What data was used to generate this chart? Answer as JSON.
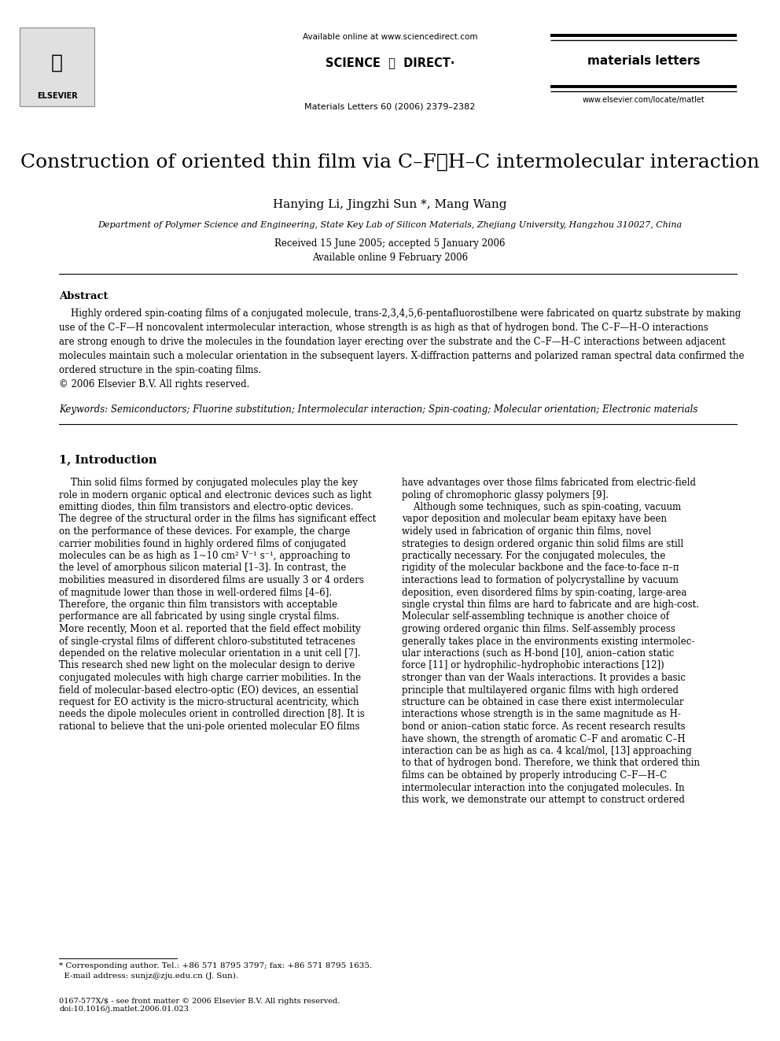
{
  "bg_color": "#ffffff",
  "page_width": 9.92,
  "page_height": 13.23,
  "header_available": "Available online at www.sciencedirect.com",
  "header_sd": "SCIENCE  ⓐ  DIRECT·",
  "header_journal": "materials letters",
  "header_info": "Materials Letters 60 (2006) 2379–2382",
  "header_website": "www.elsevier.com/locate/matlet",
  "title": "Construction of oriented thin film via C–F⋯H–C intermolecular interaction",
  "authors": "Hanying Li, Jingzhi Sun *, Mang Wang",
  "affiliation": "Department of Polymer Science and Engineering, State Key Lab of Silicon Materials, Zhejiang University, Hangzhou 310027, China",
  "date1": "Received 15 June 2005; accepted 5 January 2006",
  "date2": "Available online 9 February 2006",
  "abstract_label": "Abstract",
  "abstract_body": "    Highly ordered spin-coating films of a conjugated molecule, trans-2,3,4,5,6-pentafluorostilbene were fabricated on quartz substrate by making\nuse of the C–F—H noncovalent intermolecular interaction, whose strength is as high as that of hydrogen bond. The C–F—H–O interactions\nare strong enough to drive the molecules in the foundation layer erecting over the substrate and the C–F—H–C interactions between adjacent\nmolecules maintain such a molecular orientation in the subsequent layers. X-diffraction patterns and polarized raman spectral data confirmed the\nordered structure in the spin-coating films.\n© 2006 Elsevier B.V. All rights reserved.",
  "keywords": "Keywords: Semiconductors; Fluorine substitution; Intermolecular interaction; Spin-coating; Molecular orientation; Electronic materials",
  "sec1_title": "1, Introduction",
  "col1_lines": [
    "    Thin solid films formed by conjugated molecules play the key",
    "role in modern organic optical and electronic devices such as light",
    "emitting diodes, thin film transistors and electro-optic devices.",
    "The degree of the structural order in the films has significant effect",
    "on the performance of these devices. For example, the charge",
    "carrier mobilities found in highly ordered films of conjugated",
    "molecules can be as high as 1~10 cm² V⁻¹ s⁻¹, approaching to",
    "the level of amorphous silicon material [1–3]. In contrast, the",
    "mobilities measured in disordered films are usually 3 or 4 orders",
    "of magnitude lower than those in well-ordered films [4–6].",
    "Therefore, the organic thin film transistors with acceptable",
    "performance are all fabricated by using single crystal films.",
    "More recently, Moon et al. reported that the field effect mobility",
    "of single-crystal films of different chloro-substituted tetracenes",
    "depended on the relative molecular orientation in a unit cell [7].",
    "This research shed new light on the molecular design to derive",
    "conjugated molecules with high charge carrier mobilities. In the",
    "field of molecular-based electro-optic (EO) devices, an essential",
    "request for EO activity is the micro-structural acentricity, which",
    "needs the dipole molecules orient in controlled direction [8]. It is",
    "rational to believe that the uni-pole oriented molecular EO films"
  ],
  "col2_lines": [
    "have advantages over those films fabricated from electric-field",
    "poling of chromophoric glassy polymers [9].",
    "    Although some techniques, such as spin-coating, vacuum",
    "vapor deposition and molecular beam epitaxy have been",
    "widely used in fabrication of organic thin films, novel",
    "strategies to design ordered organic thin solid films are still",
    "practically necessary. For the conjugated molecules, the",
    "rigidity of the molecular backbone and the face-to-face π–π",
    "interactions lead to formation of polycrystalline by vacuum",
    "deposition, even disordered films by spin-coating, large-area",
    "single crystal thin films are hard to fabricate and are high-cost.",
    "Molecular self-assembling technique is another choice of",
    "growing ordered organic thin films. Self-assembly process",
    "generally takes place in the environments existing intermolec-",
    "ular interactions (such as H-bond [10], anion–cation static",
    "force [11] or hydrophilic–hydrophobic interactions [12])",
    "stronger than van der Waals interactions. It provides a basic",
    "principle that multilayered organic films with high ordered",
    "structure can be obtained in case there exist intermolecular",
    "interactions whose strength is in the same magnitude as H-",
    "bond or anion–cation static force. As recent research results",
    "have shown, the strength of aromatic C–F and aromatic C–H",
    "interaction can be as high as ca. 4 kcal/mol, [13] approaching",
    "to that of hydrogen bond. Therefore, we think that ordered thin",
    "films can be obtained by properly introducing C–F—H–C",
    "intermolecular interaction into the conjugated molecules. In",
    "this work, we demonstrate our attempt to construct ordered"
  ],
  "footnote": "* Corresponding author. Tel.: +86 571 8795 3797; fax: +86 571 8795 1635.\n  E-mail address: sunjz@zju.edu.cn (J. Sun).",
  "copyright": "0167-577X/$ - see front matter © 2006 Elsevier B.V. All rights reserved.\ndoi:10.1016/j.matlet.2006.01.023"
}
